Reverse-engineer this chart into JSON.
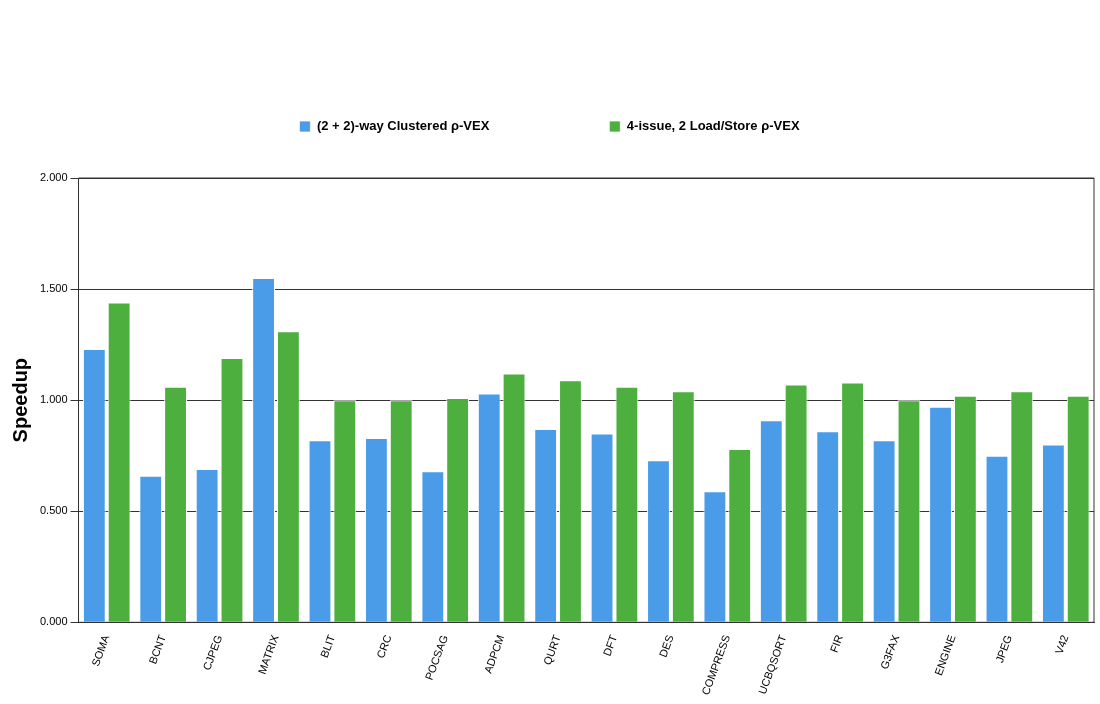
{
  "chart_data": {
    "type": "bar",
    "ylabel": "Speedup",
    "categories": [
      "SOMA",
      "BCNT",
      "CJPEG",
      "MATRIX",
      "BLIT",
      "CRC",
      "POCSAG",
      "ADPCM",
      "QURT",
      "DFT",
      "DES",
      "COMPRESS",
      "UCBQSORT",
      "FIR",
      "G3FAX",
      "ENGINE",
      "JPEG",
      "V42"
    ],
    "series": [
      {
        "name": "(2 + 2)-way Clustered ρ-VEX",
        "color": "#4a9ce8",
        "values": [
          1.23,
          0.66,
          0.69,
          1.55,
          0.82,
          0.83,
          0.68,
          1.03,
          0.87,
          0.85,
          0.73,
          0.59,
          0.91,
          0.86,
          0.82,
          0.97,
          0.75,
          0.8
        ]
      },
      {
        "name": "4-issue, 2 Load/Store ρ-VEX",
        "color": "#4caf3e",
        "values": [
          1.44,
          1.06,
          1.19,
          1.31,
          1.0,
          1.0,
          1.01,
          1.12,
          1.09,
          1.06,
          1.04,
          0.78,
          1.07,
          1.08,
          1.0,
          1.02,
          1.04,
          1.02
        ]
      }
    ],
    "ylim": [
      0,
      2
    ],
    "yticks": [
      {
        "value": 0,
        "label": "0.000"
      },
      {
        "value": 0.5,
        "label": "0.500"
      },
      {
        "value": 1,
        "label": "1.000"
      },
      {
        "value": 1.5,
        "label": "1.500"
      },
      {
        "value": 2,
        "label": "2.000"
      }
    ],
    "grid": "y",
    "legend": "top"
  }
}
